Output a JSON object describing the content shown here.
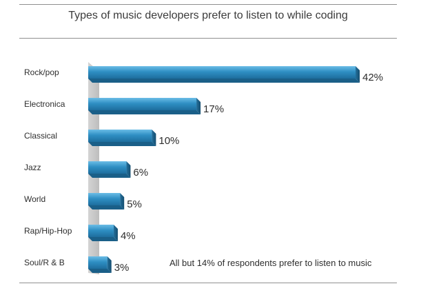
{
  "chart_data": {
    "type": "bar",
    "orientation": "horizontal",
    "title": "Types of music developers prefer to listen to while coding",
    "categories": [
      "Rock/pop",
      "Electronica",
      "Classical",
      "Jazz",
      "World",
      "Rap/Hip-Hop",
      "Soul/R & B"
    ],
    "values": [
      42,
      17,
      10,
      6,
      5,
      4,
      3
    ],
    "value_labels": [
      "42%",
      "17%",
      "10%",
      "6%",
      "5%",
      "4%",
      "3%"
    ],
    "xlabel": "",
    "ylabel": "",
    "xlim": [
      0,
      42
    ],
    "grid": false,
    "bar_color": "#2f8fc4",
    "annotation": "All but 14% of respondents prefer to listen to music"
  }
}
